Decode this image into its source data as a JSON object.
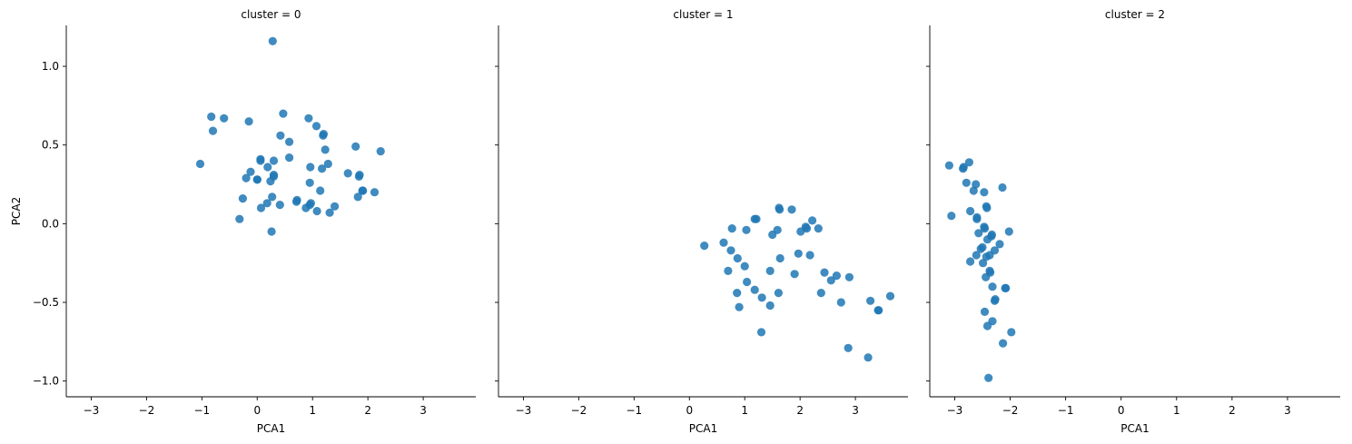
{
  "chart_data": {
    "type": "scatter",
    "facet_label_prefix": "cluster = ",
    "xlabel": "PCA1",
    "ylabel": "PCA2",
    "xlim": [
      -3.45,
      3.95
    ],
    "ylim": [
      -1.1,
      1.26
    ],
    "xticks": [
      -3,
      -2,
      -1,
      0,
      1,
      2,
      3
    ],
    "yticks": [
      -1.0,
      -0.5,
      0.0,
      0.5,
      1.0
    ],
    "ytick_labels": [
      "−1.0",
      "−0.5",
      "0.0",
      "0.5",
      "1.0"
    ],
    "xtick_labels": [
      "−3",
      "−2",
      "−1",
      "0",
      "1",
      "2",
      "3"
    ],
    "point_color": "#1f77b4",
    "grid": false,
    "panels": [
      {
        "title": "cluster = 0",
        "points": [
          [
            0.28,
            1.16
          ],
          [
            -0.83,
            0.68
          ],
          [
            -0.6,
            0.67
          ],
          [
            0.47,
            0.7
          ],
          [
            -0.8,
            0.59
          ],
          [
            -0.15,
            0.65
          ],
          [
            0.93,
            0.67
          ],
          [
            1.07,
            0.62
          ],
          [
            1.2,
            0.57
          ],
          [
            1.19,
            0.56
          ],
          [
            0.42,
            0.56
          ],
          [
            0.58,
            0.52
          ],
          [
            -1.03,
            0.38
          ],
          [
            0.06,
            0.41
          ],
          [
            0.06,
            0.4
          ],
          [
            0.3,
            0.4
          ],
          [
            0.58,
            0.42
          ],
          [
            0.96,
            0.36
          ],
          [
            1.23,
            0.47
          ],
          [
            1.28,
            0.38
          ],
          [
            1.17,
            0.35
          ],
          [
            1.64,
            0.32
          ],
          [
            1.78,
            0.49
          ],
          [
            2.23,
            0.46
          ],
          [
            -0.12,
            0.33
          ],
          [
            -0.2,
            0.29
          ],
          [
            0.0,
            0.28
          ],
          [
            0.19,
            0.36
          ],
          [
            0.3,
            0.3
          ],
          [
            0.3,
            0.31
          ],
          [
            0.24,
            0.27
          ],
          [
            0.0,
            0.28
          ],
          [
            0.95,
            0.26
          ],
          [
            1.84,
            0.3
          ],
          [
            1.85,
            0.31
          ],
          [
            -0.26,
            0.16
          ],
          [
            0.07,
            0.1
          ],
          [
            0.18,
            0.13
          ],
          [
            0.27,
            0.17
          ],
          [
            0.41,
            0.12
          ],
          [
            0.72,
            0.15
          ],
          [
            0.71,
            0.14
          ],
          [
            0.88,
            0.1
          ],
          [
            0.97,
            0.13
          ],
          [
            0.95,
            0.12
          ],
          [
            1.08,
            0.08
          ],
          [
            1.14,
            0.21
          ],
          [
            1.31,
            0.07
          ],
          [
            1.4,
            0.11
          ],
          [
            1.82,
            0.17
          ],
          [
            1.91,
            0.21
          ],
          [
            1.9,
            0.21
          ],
          [
            2.12,
            0.2
          ],
          [
            -0.32,
            0.03
          ],
          [
            0.26,
            -0.05
          ]
        ]
      },
      {
        "title": "cluster = 1",
        "points": [
          [
            1.62,
            0.1
          ],
          [
            1.63,
            0.09
          ],
          [
            1.85,
            0.09
          ],
          [
            1.18,
            0.03
          ],
          [
            1.21,
            0.03
          ],
          [
            0.77,
            -0.03
          ],
          [
            1.03,
            -0.04
          ],
          [
            1.59,
            -0.04
          ],
          [
            1.5,
            -0.07
          ],
          [
            2.01,
            -0.05
          ],
          [
            2.1,
            -0.02
          ],
          [
            2.12,
            -0.03
          ],
          [
            2.22,
            0.02
          ],
          [
            2.33,
            -0.03
          ],
          [
            0.27,
            -0.14
          ],
          [
            0.62,
            -0.12
          ],
          [
            0.75,
            -0.17
          ],
          [
            0.87,
            -0.22
          ],
          [
            1.0,
            -0.27
          ],
          [
            0.7,
            -0.3
          ],
          [
            1.64,
            -0.22
          ],
          [
            1.97,
            -0.19
          ],
          [
            2.18,
            -0.2
          ],
          [
            1.46,
            -0.3
          ],
          [
            1.9,
            -0.32
          ],
          [
            2.44,
            -0.31
          ],
          [
            2.66,
            -0.33
          ],
          [
            2.89,
            -0.34
          ],
          [
            2.56,
            -0.36
          ],
          [
            1.04,
            -0.37
          ],
          [
            0.86,
            -0.44
          ],
          [
            1.18,
            -0.42
          ],
          [
            1.31,
            -0.47
          ],
          [
            1.61,
            -0.44
          ],
          [
            0.9,
            -0.53
          ],
          [
            1.46,
            -0.52
          ],
          [
            2.38,
            -0.44
          ],
          [
            2.74,
            -0.5
          ],
          [
            3.27,
            -0.49
          ],
          [
            3.41,
            -0.55
          ],
          [
            3.42,
            -0.55
          ],
          [
            3.63,
            -0.46
          ],
          [
            1.3,
            -0.69
          ],
          [
            2.87,
            -0.79
          ],
          [
            3.23,
            -0.85
          ]
        ]
      },
      {
        "title": "cluster = 2",
        "points": [
          [
            -3.1,
            0.37
          ],
          [
            -2.85,
            0.35
          ],
          [
            -2.84,
            0.36
          ],
          [
            -2.74,
            0.39
          ],
          [
            -2.79,
            0.26
          ],
          [
            -2.66,
            0.21
          ],
          [
            -2.62,
            0.25
          ],
          [
            -2.47,
            0.2
          ],
          [
            -2.14,
            0.23
          ],
          [
            -2.42,
            0.1
          ],
          [
            -2.43,
            0.11
          ],
          [
            -2.72,
            0.08
          ],
          [
            -3.06,
            0.05
          ],
          [
            -2.6,
            0.03
          ],
          [
            -2.6,
            0.04
          ],
          [
            -2.47,
            -0.02
          ],
          [
            -2.46,
            -0.03
          ],
          [
            -2.57,
            -0.06
          ],
          [
            -2.33,
            -0.07
          ],
          [
            -2.34,
            -0.08
          ],
          [
            -2.41,
            -0.1
          ],
          [
            -2.02,
            -0.05
          ],
          [
            -2.19,
            -0.13
          ],
          [
            -2.5,
            -0.15
          ],
          [
            -2.53,
            -0.16
          ],
          [
            -2.28,
            -0.17
          ],
          [
            -2.61,
            -0.2
          ],
          [
            -2.43,
            -0.21
          ],
          [
            -2.37,
            -0.2
          ],
          [
            -2.72,
            -0.24
          ],
          [
            -2.49,
            -0.25
          ],
          [
            -2.37,
            -0.3
          ],
          [
            -2.36,
            -0.31
          ],
          [
            -2.44,
            -0.34
          ],
          [
            -2.32,
            -0.4
          ],
          [
            -2.09,
            -0.41
          ],
          [
            -2.08,
            -0.41
          ],
          [
            -2.27,
            -0.48
          ],
          [
            -2.28,
            -0.49
          ],
          [
            -2.46,
            -0.56
          ],
          [
            -2.32,
            -0.62
          ],
          [
            -2.41,
            -0.65
          ],
          [
            -1.98,
            -0.69
          ],
          [
            -2.13,
            -0.76
          ],
          [
            -2.39,
            -0.98
          ]
        ]
      }
    ]
  }
}
